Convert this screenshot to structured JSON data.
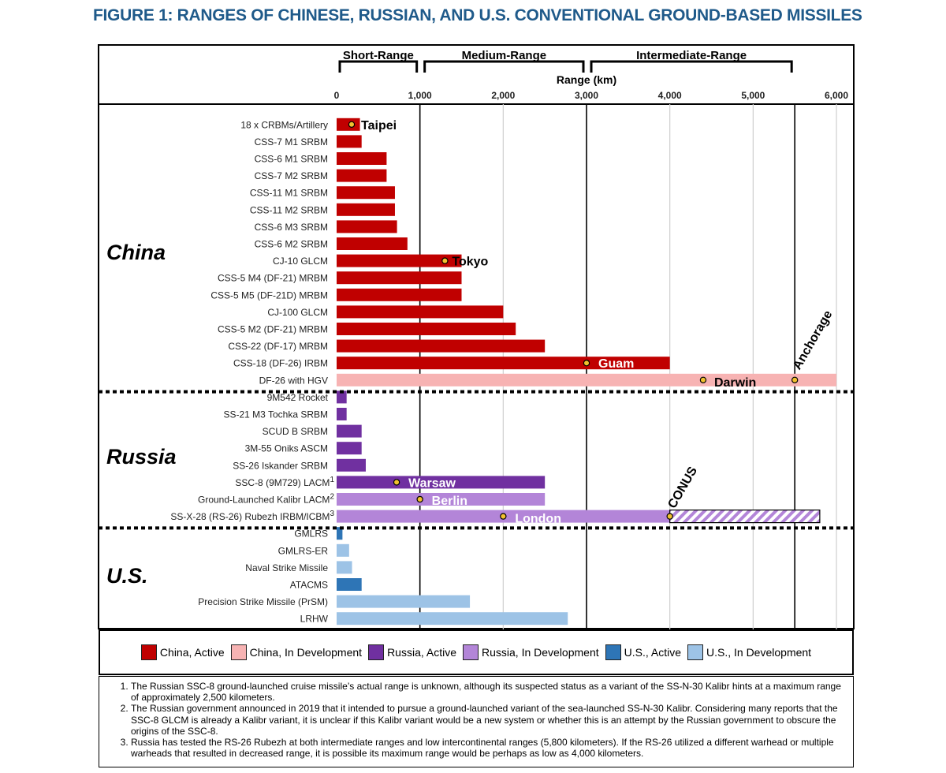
{
  "title": "FIGURE 1: RANGES OF CHINESE, RUSSIAN, AND U.S. CONVENTIONAL GROUND-BASED MISSILES",
  "colors": {
    "china_active": "#c00000",
    "china_dev": "#f7b3b3",
    "russia_active": "#7030a0",
    "russia_dev": "#b385d8",
    "us_active": "#2e75b6",
    "us_dev": "#9dc3e6",
    "title": "#1f5a8a",
    "marker": "#f2c12e"
  },
  "chart_data": {
    "type": "bar",
    "orientation": "horizontal",
    "xlabel": "Range (km)",
    "xlim": [
      0,
      6000
    ],
    "xticks": [
      0,
      1000,
      2000,
      3000,
      4000,
      5000,
      6000
    ],
    "xtick_labels": [
      "0",
      "1,000",
      "2,000",
      "3,000",
      "4,000",
      "5,000",
      "6,000"
    ],
    "range_bands": [
      {
        "label": "Short-Range",
        "from": 0,
        "to": 1000
      },
      {
        "label": "Medium-Range",
        "from": 1000,
        "to": 3000
      },
      {
        "label": "Intermediate-Range",
        "from": 3000,
        "to": 5500
      }
    ],
    "groups": [
      {
        "name": "China",
        "rows": [
          {
            "label": "18 x CRBMs/Artillery",
            "value": 280,
            "status": "china_active"
          },
          {
            "label": "CSS-7 M1 SRBM",
            "value": 300,
            "status": "china_active"
          },
          {
            "label": "CSS-6 M1 SRBM",
            "value": 600,
            "status": "china_active"
          },
          {
            "label": "CSS-7 M2 SRBM",
            "value": 600,
            "status": "china_active"
          },
          {
            "label": "CSS-11 M1 SRBM",
            "value": 700,
            "status": "china_active"
          },
          {
            "label": "CSS-11 M2 SRBM",
            "value": 700,
            "status": "china_active"
          },
          {
            "label": "CSS-6 M3 SRBM",
            "value": 725,
            "status": "china_active"
          },
          {
            "label": "CSS-6 M2 SRBM",
            "value": 850,
            "status": "china_active"
          },
          {
            "label": "CJ-10 GLCM",
            "value": 1500,
            "status": "china_active"
          },
          {
            "label": "CSS-5 M4 (DF-21) MRBM",
            "value": 1500,
            "status": "china_active"
          },
          {
            "label": "CSS-5 M5 (DF-21D) MRBM",
            "value": 1500,
            "status": "china_active"
          },
          {
            "label": "CJ-100 GLCM",
            "value": 2000,
            "status": "china_active"
          },
          {
            "label": "CSS-5 M2 (DF-21) MRBM",
            "value": 2150,
            "status": "china_active"
          },
          {
            "label": "CSS-22 (DF-17) MRBM",
            "value": 2500,
            "status": "china_active"
          },
          {
            "label": "CSS-18 (DF-26) IRBM",
            "value": 4000,
            "status": "china_active"
          },
          {
            "label": "DF-26 with HGV",
            "value": 6000,
            "status": "china_dev"
          }
        ]
      },
      {
        "name": "Russia",
        "rows": [
          {
            "label": "9M542 Rocket",
            "value": 120,
            "status": "russia_active"
          },
          {
            "label": "SS-21 M3 Tochka SRBM",
            "value": 120,
            "status": "russia_active"
          },
          {
            "label": "SCUD B SRBM",
            "value": 300,
            "status": "russia_active"
          },
          {
            "label": "3M-55 Oniks ASCM",
            "value": 300,
            "status": "russia_active"
          },
          {
            "label": "SS-26 Iskander SRBM",
            "value": 350,
            "status": "russia_active"
          },
          {
            "label": "SSC-8 (9M729) LACM",
            "note": "1",
            "value": 2500,
            "status": "russia_active"
          },
          {
            "label": "Ground-Launched Kalibr LACM",
            "note": "2",
            "value": 2500,
            "status": "russia_dev"
          },
          {
            "label": "SS-X-28 (RS-26) Rubezh IRBM/ICBM",
            "note": "3",
            "value": 4000,
            "extended_value": 5800,
            "status": "russia_dev"
          }
        ]
      },
      {
        "name": "U.S.",
        "rows": [
          {
            "label": "GMLRS",
            "value": 70,
            "status": "us_active"
          },
          {
            "label": "GMLRS-ER",
            "value": 150,
            "status": "us_dev"
          },
          {
            "label": "Naval Strike Missile",
            "value": 185,
            "status": "us_dev"
          },
          {
            "label": "ATACMS",
            "value": 300,
            "status": "us_active"
          },
          {
            "label": "Precision Strike Missile (PrSM)",
            "value": 1600,
            "status": "us_dev"
          },
          {
            "label": "LRHW",
            "value": 2775,
            "status": "us_dev"
          }
        ]
      }
    ],
    "city_markers": [
      {
        "city": "Taipei",
        "row": "18 x CRBMs/Artillery",
        "value": 180
      },
      {
        "city": "Tokyo",
        "row": "CJ-10 GLCM",
        "value": 1300
      },
      {
        "city": "Guam",
        "row": "CSS-18 (DF-26) IRBM",
        "value": 3000
      },
      {
        "city": "Darwin",
        "row": "DF-26 with HGV",
        "value": 4400
      },
      {
        "city": "Anchorage",
        "row": "DF-26 with HGV",
        "value": 5500
      },
      {
        "city": "Warsaw",
        "row": "SSC-8 (9M729) LACM",
        "value": 720
      },
      {
        "city": "Berlin",
        "row": "Ground-Launched Kalibr LACM",
        "value": 1000
      },
      {
        "city": "London",
        "row": "SS-X-28 (RS-26) Rubezh IRBM/ICBM",
        "value": 2000
      },
      {
        "city": "CONUS",
        "row": "SS-X-28 (RS-26) Rubezh IRBM/ICBM",
        "value": 4000
      }
    ],
    "legend": [
      {
        "label": "China, Active",
        "status": "china_active"
      },
      {
        "label": "China, In Development",
        "status": "china_dev"
      },
      {
        "label": "Russia, Active",
        "status": "russia_active"
      },
      {
        "label": "Russia, In Development",
        "status": "russia_dev"
      },
      {
        "label": "U.S., Active",
        "status": "us_active"
      },
      {
        "label": "U.S., In Development",
        "status": "us_dev"
      }
    ]
  },
  "footnotes": [
    "The Russian SSC-8 ground-launched cruise missile’s actual range is unknown, although its suspected status as a variant of the SS-N-30 Kalibr hints at a maximum range of approximately 2,500 kilometers.",
    "The Russian government announced in 2019 that it intended to pursue a ground-launched variant of the sea-launched SS-N-30 Kalibr. Considering many reports that the SSC-8 GLCM is already a Kalibr variant, it is unclear if this Kalibr variant would be a new system or whether this is an attempt by the Russian government to obscure the origins of the SSC-8.",
    "Russia has tested the RS-26 Rubezh at both intermediate ranges and low intercontinental ranges (5,800 kilometers). If the RS-26 utilized a different warhead or multiple warheads that resulted in decreased range, it is possible its maximum range would be perhaps as low as 4,000 kilometers."
  ]
}
